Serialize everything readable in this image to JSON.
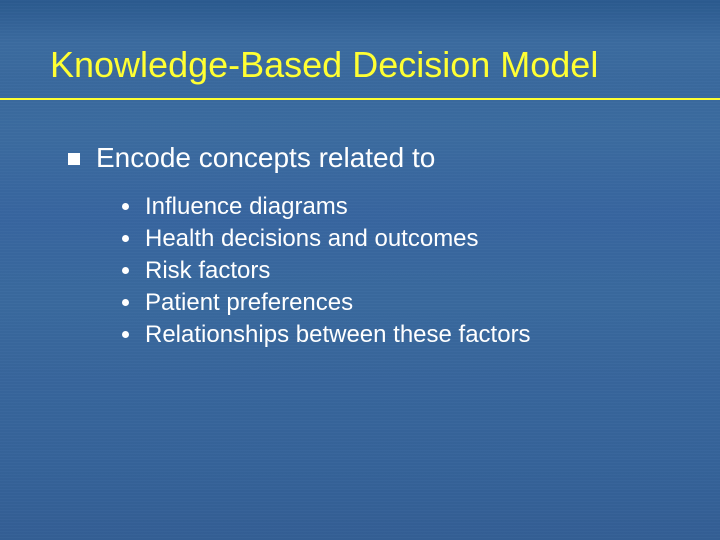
{
  "slide": {
    "background_gradient": [
      "#2b5a8f",
      "#3c6ca0",
      "#3a6a9e",
      "#38669c",
      "#345f95"
    ],
    "title": {
      "text": "Knowledge-Based Decision Model",
      "color": "#ffff33",
      "fontsize": 36,
      "underline_color": "#ffff33"
    },
    "body_text_color": "#ffffff",
    "lvl1": {
      "bullet_shape": "square",
      "bullet_color": "#ffffff",
      "fontsize": 28,
      "text": "Encode concepts related to"
    },
    "lvl2": {
      "bullet_shape": "disc",
      "bullet_color": "#ffffff",
      "fontsize": 24,
      "items": [
        "Influence diagrams",
        "Health decisions and outcomes",
        "Risk factors",
        "Patient preferences",
        "Relationships between these factors"
      ]
    }
  }
}
